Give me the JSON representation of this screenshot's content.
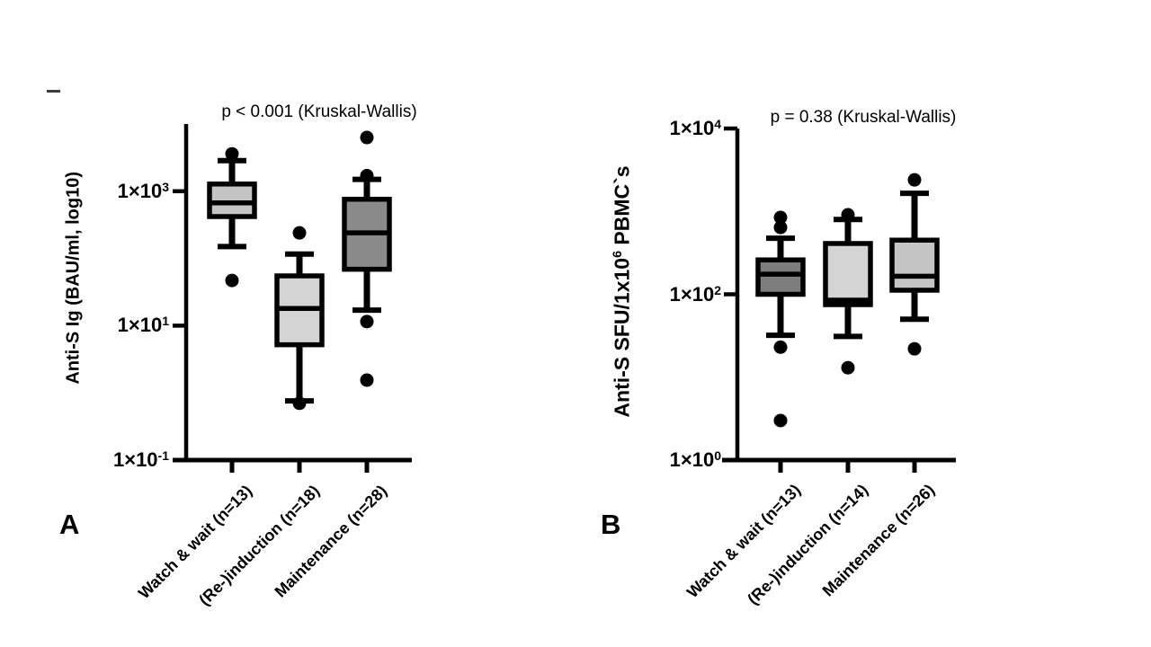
{
  "figure": {
    "background": "#ffffff",
    "ink_color": "#000000"
  },
  "chart_data": [
    {
      "type": "box",
      "panel_label": "A",
      "title": "p < 0.001 (Kruskal-Wallis)",
      "ylabel": {
        "pre": "Anti-S Ig (BAU/ml, log10)",
        "sup": "",
        "post": ""
      },
      "yscale": "log10",
      "ylim_log": [
        -1,
        4
      ],
      "grid": false,
      "yticks": [
        {
          "base": "1×10",
          "exp": "3",
          "value": 1000
        },
        {
          "base": "1×10",
          "exp": "1",
          "value": 10
        },
        {
          "base": "1×10",
          "exp": "-1",
          "value": 0.1
        }
      ],
      "groups": [
        {
          "label": "Watch & wait (n=13)",
          "fill": "#c5c5c5",
          "whisker_low": 150,
          "q1": 420,
          "median": 670,
          "q3": 1280,
          "whisker_high": 2850,
          "outliers_high": [
            3600
          ],
          "outliers_low": [
            47
          ]
        },
        {
          "label": "(Re-)induction (n=18)",
          "fill": "#d4d4d4",
          "whisker_low": 0.76,
          "q1": 5.2,
          "median": 18,
          "q3": 55,
          "whisker_high": 116,
          "outliers_high": [
            240
          ],
          "outliers_low": [
            0.7
          ]
        },
        {
          "label": "Maintenance (n=28)",
          "fill": "#8a8a8a",
          "whisker_low": 17,
          "q1": 69,
          "median": 240,
          "q3": 760,
          "whisker_high": 1500,
          "outliers_high": [
            6300,
            1700
          ],
          "outliers_low": [
            11.5,
            1.55
          ]
        }
      ]
    },
    {
      "type": "box",
      "panel_label": "B",
      "title": "p = 0.38 (Kruskal-Wallis)",
      "ylabel": {
        "pre": "Anti-S SFU/1x10",
        "sup": "6",
        "post": " PBMC`s"
      },
      "yscale": "log10",
      "ylim_log": [
        0,
        4
      ],
      "grid": false,
      "yticks": [
        {
          "base": "1×10",
          "exp": "4",
          "value": 10000
        },
        {
          "base": "1×10",
          "exp": "2",
          "value": 100
        },
        {
          "base": "1×10",
          "exp": "0",
          "value": 1
        }
      ],
      "groups": [
        {
          "label": "Watch & wait (n=13)",
          "fill": "#7d7d7d",
          "whisker_low": 32,
          "q1": 100,
          "median": 175,
          "q3": 260,
          "whisker_high": 475,
          "outliers_high": [
            845,
            640
          ],
          "outliers_low": [
            23,
            3
          ]
        },
        {
          "label": "(Re-)induction (n=14)",
          "fill": "#d4d4d4",
          "whisker_low": 31,
          "q1": 75,
          "median": 85,
          "q3": 410,
          "whisker_high": 800,
          "outliers_high": [
            910
          ],
          "outliers_low": [
            13
          ]
        },
        {
          "label": "Maintenance (n=26)",
          "fill": "#c5c5c5",
          "whisker_low": 50,
          "q1": 112,
          "median": 165,
          "q3": 450,
          "whisker_high": 1650,
          "outliers_high": [
            2400
          ],
          "outliers_low": [
            22
          ]
        }
      ]
    }
  ]
}
